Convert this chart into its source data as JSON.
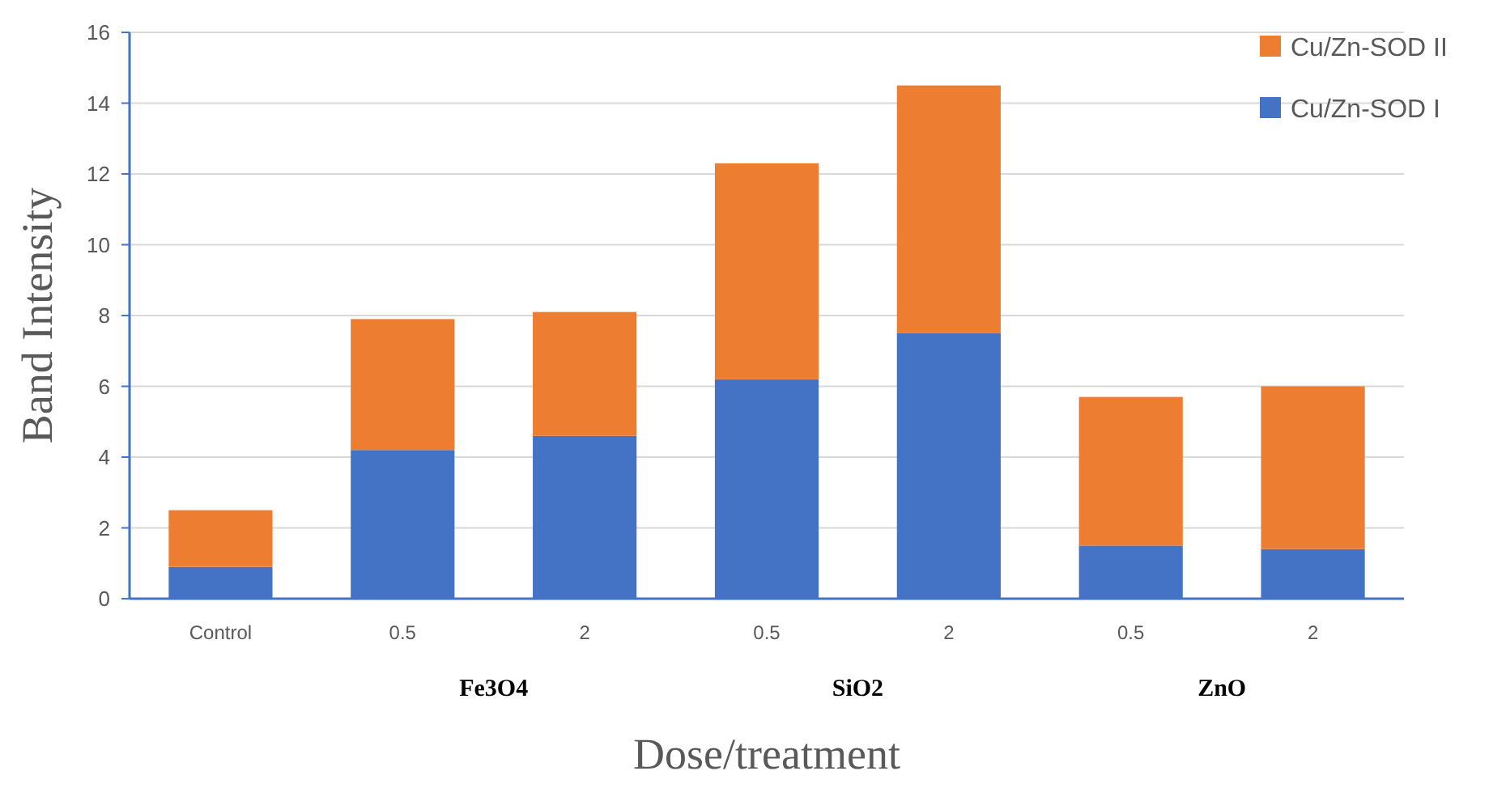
{
  "chart_data": {
    "type": "bar",
    "stacked": true,
    "xlabel": "Dose/treatment",
    "ylabel": "Band Intensity",
    "categories": [
      "Control",
      "0.5",
      "2",
      "0.5",
      "2",
      "0.5",
      "2"
    ],
    "series": [
      {
        "name": "Cu/Zn-SOD I",
        "color": "#4472c4",
        "values": [
          0.9,
          4.2,
          4.6,
          6.2,
          7.5,
          1.5,
          1.4
        ]
      },
      {
        "name": "Cu/Zn-SOD II",
        "color": "#ed7d31",
        "values": [
          1.6,
          3.7,
          3.5,
          6.1,
          7.0,
          4.2,
          4.6
        ]
      }
    ],
    "ylim": [
      0,
      16
    ],
    "yticks": [
      0,
      2,
      4,
      6,
      8,
      10,
      12,
      14,
      16
    ],
    "grid": "y",
    "legend": "top right",
    "annotations": [
      "Fe3O4",
      "SiO2",
      "ZnO"
    ]
  }
}
